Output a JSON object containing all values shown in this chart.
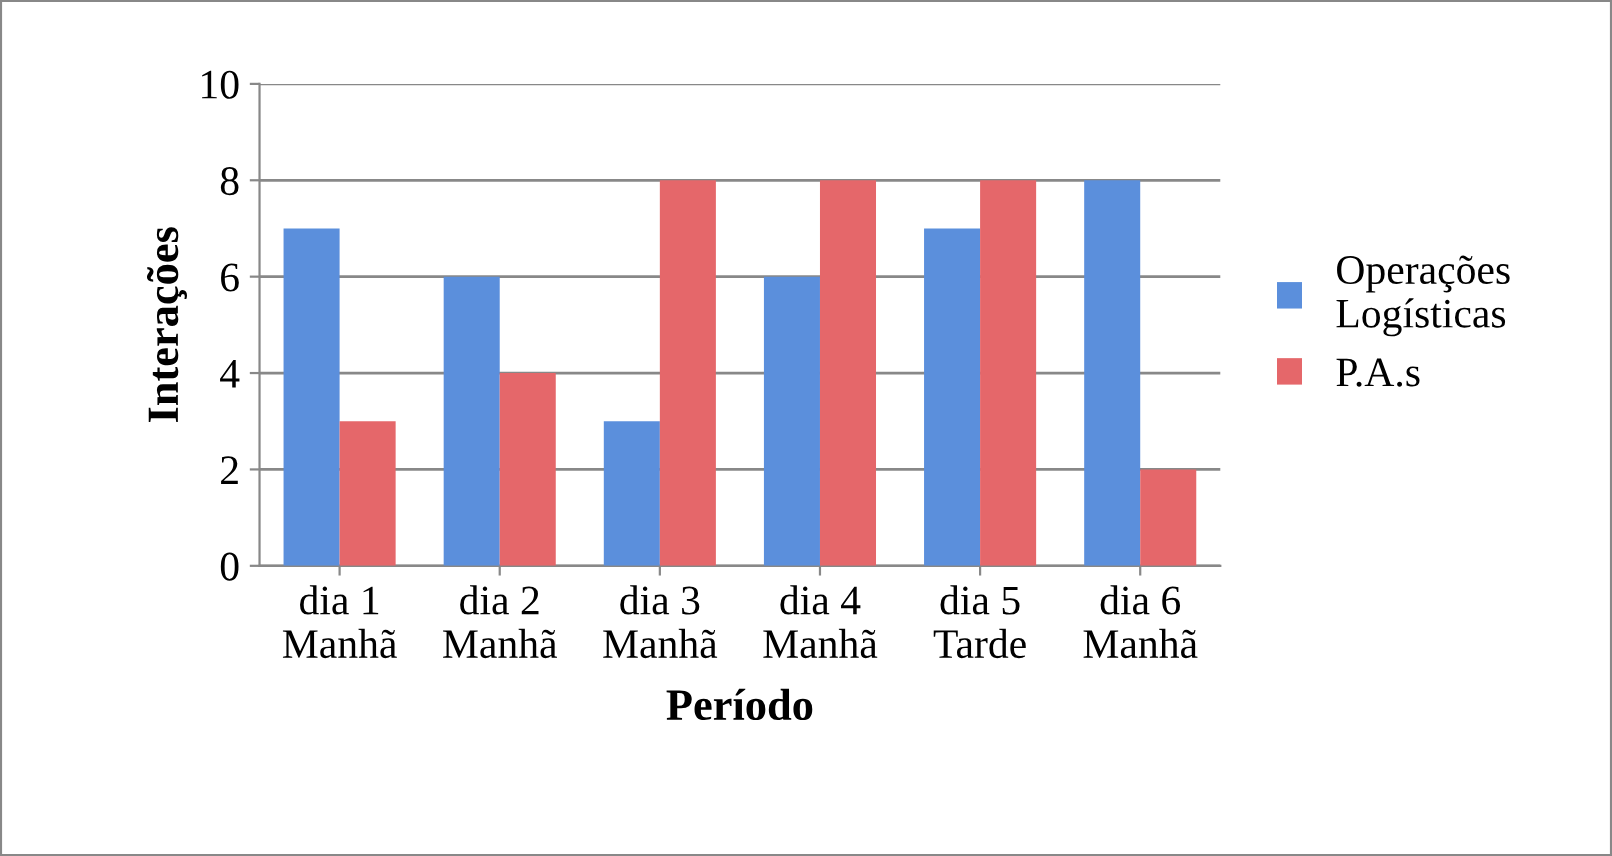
{
  "chart_data": {
    "type": "bar",
    "xlabel": "Período",
    "ylabel": "Interações",
    "categories": [
      "dia 1\nManhã",
      "dia 2\nManhã",
      "dia 3\nManhã",
      "dia 4\nManhã",
      "dia 5\nTarde",
      "dia 6\nManhã"
    ],
    "series": [
      {
        "name": "Operações\nLogísticas",
        "color": "#5b8fdc",
        "values": [
          7,
          6,
          3,
          6,
          7,
          8
        ]
      },
      {
        "name": "P.A.s",
        "color": "#e5676a",
        "values": [
          3,
          4,
          8,
          8,
          8,
          2
        ]
      }
    ],
    "ylim": [
      0,
      10
    ],
    "yticks": [
      0,
      2,
      4,
      6,
      8,
      10
    ],
    "grid": "y",
    "legend": "right"
  }
}
